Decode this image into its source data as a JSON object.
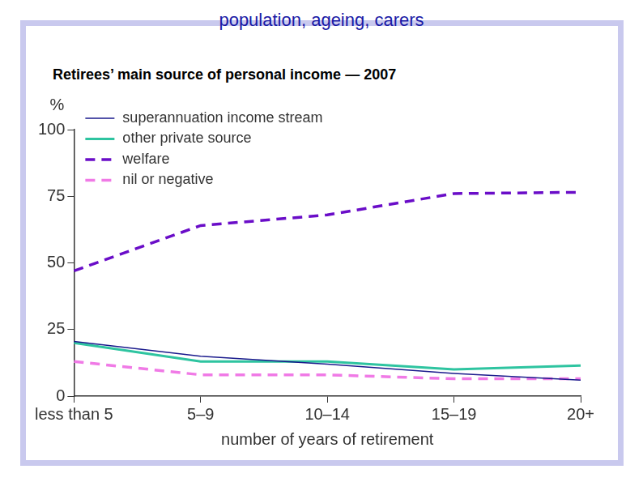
{
  "header": "population, ageing, carers",
  "chart_data": {
    "type": "line",
    "title": "Retirees’ main source of personal income — 2007",
    "x_label": "number of years of retirement",
    "y_label": "%",
    "categories": [
      "less than 5",
      "5–9",
      "10–14",
      "15–19",
      "20+"
    ],
    "series": [
      {
        "name": "superannuation income stream",
        "color": "#1a1a8c",
        "line_style": "solid",
        "marker": "none",
        "values": [
          20.5,
          15,
          12,
          8.5,
          6
        ]
      },
      {
        "name": "other private source",
        "color": "#2ec4a0",
        "line_style": "solid",
        "marker": "none",
        "values": [
          20,
          13,
          13,
          10,
          11.5
        ]
      },
      {
        "name": "welfare",
        "color": "#6a0dc8",
        "line_style": "dashed",
        "marker": "none",
        "values": [
          47,
          64,
          68,
          76,
          76.5
        ]
      },
      {
        "name": "nil or negative",
        "color": "#f07ae6",
        "line_style": "dashed",
        "marker": "none",
        "values": [
          13,
          8,
          8,
          6.5,
          6.5
        ]
      }
    ],
    "ylim": [
      0,
      100
    ],
    "yticks": [
      0,
      25,
      50,
      75,
      100
    ],
    "grid": false,
    "legend": "upper left"
  }
}
